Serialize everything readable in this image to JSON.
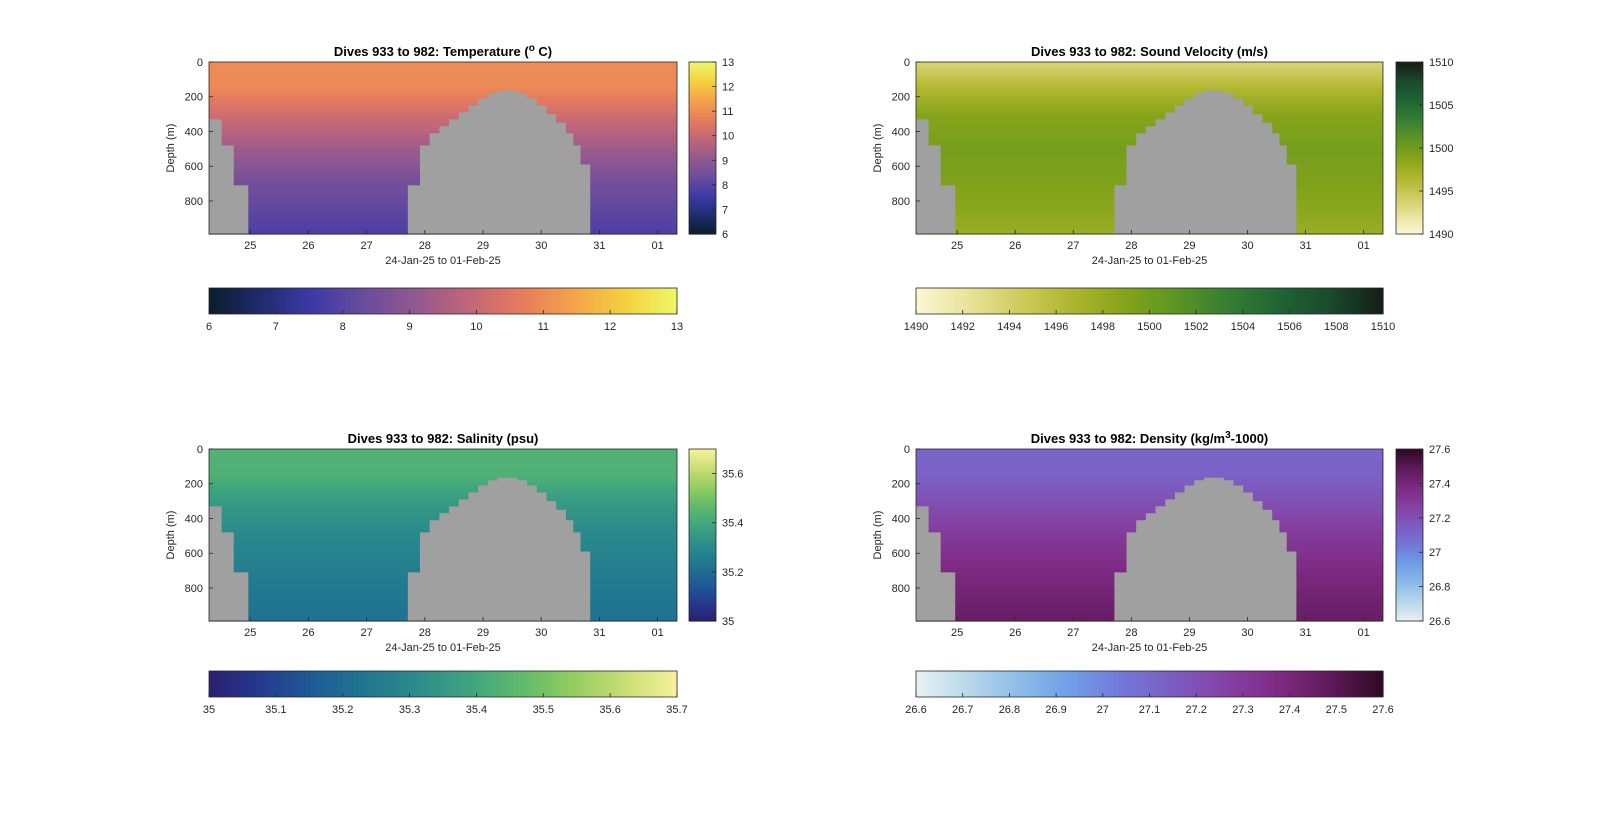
{
  "figure": {
    "background": "#ffffff",
    "mask_color": "#a0a0a0"
  },
  "chart_data": [
    {
      "id": "temperature",
      "type": "heatmap",
      "title_prefix": "Dives 933 to 982: Temperature (",
      "title_sup": "o",
      "title_suffix": " C)",
      "xlabel": "24-Jan-25 to 01-Feb-25",
      "ylabel": "Depth (m)",
      "y_range": [
        0,
        990
      ],
      "y_reversed": true,
      "y_ticks": [
        "0",
        "200",
        "400",
        "600",
        "800"
      ],
      "y_tick_values": [
        0,
        200,
        400,
        600,
        800
      ],
      "x_range": [
        "2025-01-24T07:00",
        "2025-02-01T08:00"
      ],
      "x_ticks": [
        "25",
        "26",
        "27",
        "28",
        "29",
        "30",
        "31",
        "01"
      ],
      "x_tick_dates": [
        "2025-01-25",
        "2025-01-26",
        "2025-01-27",
        "2025-01-28",
        "2025-01-29",
        "2025-01-30",
        "2025-01-31",
        "2025-02-01"
      ],
      "colorbar_vertical": {
        "range": [
          6,
          13
        ],
        "ticks": [
          "6",
          "7",
          "8",
          "9",
          "10",
          "11",
          "12",
          "13"
        ]
      },
      "colorbar_horizontal": {
        "range": [
          6,
          13
        ],
        "ticks": [
          "6",
          "7",
          "8",
          "9",
          "10",
          "11",
          "12",
          "13"
        ]
      },
      "colormap": [
        "#0a1d2a",
        "#1f2c6e",
        "#3d3aa6",
        "#6a4c9d",
        "#93598f",
        "#c06679",
        "#e77b5d",
        "#f4a24a",
        "#f4d13e",
        "#eef66a"
      ],
      "profile_depths": [
        0,
        150,
        300,
        500,
        700,
        990
      ],
      "profile_values": [
        11.0,
        10.95,
        10.2,
        9.3,
        8.5,
        7.8
      ]
    },
    {
      "id": "sound_velocity",
      "type": "heatmap",
      "title_prefix": "Dives 933 to 982: Sound Velocity (m/s)",
      "title_sup": "",
      "title_suffix": "",
      "xlabel": "24-Jan-25 to 01-Feb-25",
      "ylabel": "Depth (m)",
      "y_range": [
        0,
        990
      ],
      "y_reversed": true,
      "y_ticks": [
        "0",
        "200",
        "400",
        "600",
        "800"
      ],
      "y_tick_values": [
        0,
        200,
        400,
        600,
        800
      ],
      "x_range": [
        "2025-01-24T07:00",
        "2025-02-01T08:00"
      ],
      "x_ticks": [
        "25",
        "26",
        "27",
        "28",
        "29",
        "30",
        "31",
        "01"
      ],
      "x_tick_dates": [
        "2025-01-25",
        "2025-01-26",
        "2025-01-27",
        "2025-01-28",
        "2025-01-29",
        "2025-01-30",
        "2025-01-31",
        "2025-02-01"
      ],
      "colorbar_vertical": {
        "range": [
          1490,
          1510
        ],
        "ticks": [
          "1490",
          "1495",
          "1500",
          "1505",
          "1510"
        ]
      },
      "colorbar_horizontal": {
        "range": [
          1490,
          1510
        ],
        "ticks": [
          "1490",
          "1492",
          "1494",
          "1496",
          "1498",
          "1500",
          "1502",
          "1504",
          "1506",
          "1508",
          "1510"
        ]
      },
      "colormap": [
        "#fdf7d6",
        "#e9e39a",
        "#cfcb5e",
        "#aeb62e",
        "#86a41a",
        "#5d9522",
        "#357f32",
        "#1f6434",
        "#1a4a2c",
        "#141d16"
      ],
      "profile_depths": [
        0,
        150,
        300,
        500,
        700,
        990
      ],
      "profile_values": [
        1493.5,
        1496.5,
        1498.8,
        1499.8,
        1499.3,
        1497.8
      ]
    },
    {
      "id": "salinity",
      "type": "heatmap",
      "title_prefix": "Dives 933 to 982: Salinity (psu)",
      "title_sup": "",
      "title_suffix": "",
      "xlabel": "24-Jan-25 to 01-Feb-25",
      "ylabel": "Depth (m)",
      "y_range": [
        0,
        990
      ],
      "y_reversed": true,
      "y_ticks": [
        "0",
        "200",
        "400",
        "600",
        "800"
      ],
      "y_tick_values": [
        0,
        200,
        400,
        600,
        800
      ],
      "x_range": [
        "2025-01-24T07:00",
        "2025-02-01T08:00"
      ],
      "x_ticks": [
        "25",
        "26",
        "27",
        "28",
        "29",
        "30",
        "31",
        "01"
      ],
      "x_tick_dates": [
        "2025-01-25",
        "2025-01-26",
        "2025-01-27",
        "2025-01-28",
        "2025-01-29",
        "2025-01-30",
        "2025-01-31",
        "2025-02-01"
      ],
      "colorbar_vertical": {
        "range": [
          35,
          35.7
        ],
        "ticks": [
          "35",
          "35.2",
          "35.4",
          "35.6"
        ]
      },
      "colorbar_horizontal": {
        "range": [
          35,
          35.7
        ],
        "ticks": [
          "35",
          "35.1",
          "35.2",
          "35.3",
          "35.4",
          "35.5",
          "35.6",
          "35.7"
        ]
      },
      "colormap": [
        "#2a1f6e",
        "#253a8f",
        "#1e5c95",
        "#207691",
        "#2b8c8b",
        "#3ea47f",
        "#5fba6c",
        "#93cd5f",
        "#c8de74",
        "#f7f19c"
      ],
      "profile_depths": [
        0,
        150,
        300,
        500,
        700,
        990
      ],
      "profile_values": [
        35.44,
        35.43,
        35.36,
        35.3,
        35.26,
        35.22
      ]
    },
    {
      "id": "density",
      "type": "heatmap",
      "title_prefix": "Dives 933 to 982: Density (kg/m",
      "title_sup": "3",
      "title_suffix": "-1000)",
      "xlabel": "24-Jan-25 to 01-Feb-25",
      "ylabel": "Depth (m)",
      "y_range": [
        0,
        990
      ],
      "y_reversed": true,
      "y_ticks": [
        "0",
        "200",
        "400",
        "600",
        "800"
      ],
      "y_tick_values": [
        0,
        200,
        400,
        600,
        800
      ],
      "x_range": [
        "2025-01-24T07:00",
        "2025-02-01T08:00"
      ],
      "x_ticks": [
        "25",
        "26",
        "27",
        "28",
        "29",
        "30",
        "31",
        "01"
      ],
      "x_tick_dates": [
        "2025-01-25",
        "2025-01-26",
        "2025-01-27",
        "2025-01-28",
        "2025-01-29",
        "2025-01-30",
        "2025-01-31",
        "2025-02-01"
      ],
      "colorbar_vertical": {
        "range": [
          26.6,
          27.6
        ],
        "ticks": [
          "26.6",
          "26.8",
          "27",
          "27.2",
          "27.4",
          "27.6"
        ]
      },
      "colorbar_horizontal": {
        "range": [
          26.6,
          27.6
        ],
        "ticks": [
          "26.6",
          "26.7",
          "26.8",
          "26.9",
          "27",
          "27.1",
          "27.2",
          "27.3",
          "27.4",
          "27.5",
          "27.6"
        ]
      },
      "colormap": [
        "#e8f2f4",
        "#b9d8eb",
        "#8cbce8",
        "#6f9ee6",
        "#7277d8",
        "#7d5cc0",
        "#8541a3",
        "#7e2a83",
        "#5e1959",
        "#2e0a23"
      ],
      "profile_depths": [
        0,
        150,
        300,
        500,
        700,
        990
      ],
      "profile_values": [
        27.12,
        27.13,
        27.2,
        27.3,
        27.38,
        27.46
      ]
    }
  ],
  "gaps": [
    {
      "chart": "all",
      "start": "2025-01-24T07:00",
      "end": "2025-01-24T12:00",
      "min_depth": 330
    },
    {
      "chart": "all",
      "start": "2025-01-24T12:00",
      "end": "2025-01-24T17:00",
      "min_depth": 480
    },
    {
      "chart": "all",
      "start": "2025-01-24T17:00",
      "end": "2025-01-24T23:00",
      "min_depth": 710
    },
    {
      "chart": "all",
      "start": "2025-01-27T17:00",
      "end": "2025-01-27T22:00",
      "min_depth": 710
    },
    {
      "chart": "all",
      "start": "2025-01-27T22:00",
      "end": "2025-01-28T02:00",
      "min_depth": 480
    },
    {
      "chart": "all",
      "start": "2025-01-28T02:00",
      "end": "2025-01-28T06:00",
      "min_depth": 410
    },
    {
      "chart": "all",
      "start": "2025-01-28T06:00",
      "end": "2025-01-28T10:00",
      "min_depth": 370
    },
    {
      "chart": "all",
      "start": "2025-01-28T10:00",
      "end": "2025-01-28T14:00",
      "min_depth": 330
    },
    {
      "chart": "all",
      "start": "2025-01-28T14:00",
      "end": "2025-01-28T18:00",
      "min_depth": 290
    },
    {
      "chart": "all",
      "start": "2025-01-28T18:00",
      "end": "2025-01-28T22:00",
      "min_depth": 250
    },
    {
      "chart": "all",
      "start": "2025-01-28T22:00",
      "end": "2025-01-29T02:00",
      "min_depth": 210
    },
    {
      "chart": "all",
      "start": "2025-01-29T02:00",
      "end": "2025-01-29T06:00",
      "min_depth": 180
    },
    {
      "chart": "all",
      "start": "2025-01-29T06:00",
      "end": "2025-01-29T14:00",
      "min_depth": 165
    },
    {
      "chart": "all",
      "start": "2025-01-29T14:00",
      "end": "2025-01-29T18:00",
      "min_depth": 180
    },
    {
      "chart": "all",
      "start": "2025-01-29T18:00",
      "end": "2025-01-29T22:00",
      "min_depth": 210
    },
    {
      "chart": "all",
      "start": "2025-01-29T22:00",
      "end": "2025-01-30T02:00",
      "min_depth": 250
    },
    {
      "chart": "all",
      "start": "2025-01-30T02:00",
      "end": "2025-01-30T06:00",
      "min_depth": 300
    },
    {
      "chart": "all",
      "start": "2025-01-30T06:00",
      "end": "2025-01-30T10:00",
      "min_depth": 350
    },
    {
      "chart": "all",
      "start": "2025-01-30T10:00",
      "end": "2025-01-30T13:00",
      "min_depth": 410
    },
    {
      "chart": "all",
      "start": "2025-01-30T13:00",
      "end": "2025-01-30T16:00",
      "min_depth": 480
    },
    {
      "chart": "all",
      "start": "2025-01-30T16:00",
      "end": "2025-01-30T20:00",
      "min_depth": 590
    }
  ]
}
